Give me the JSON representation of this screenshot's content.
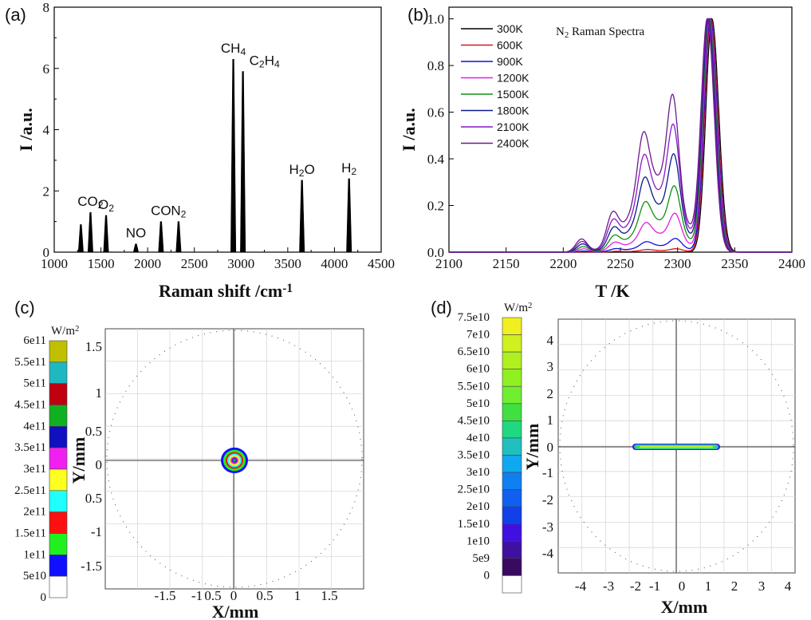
{
  "chart_data": [
    {
      "panel": "(a)",
      "type": "bar",
      "xlabel": "Raman shift  /cm",
      "xlabel_sup": "-1",
      "ylabel": "I  /a.u.",
      "xlim": [
        1000,
        4500
      ],
      "ylim": [
        0,
        8
      ],
      "xticks": [
        "1000",
        "1500",
        "2000",
        "2500",
        "3000",
        "3500",
        "4000",
        "4500"
      ],
      "yticks": [
        "0",
        "2",
        "4",
        "6",
        "8"
      ],
      "peaks": [
        {
          "x": 1285,
          "y": 0.9,
          "label": ""
        },
        {
          "x": 1388,
          "y": 1.3,
          "label": "CO",
          "sub": "2"
        },
        {
          "x": 1555,
          "y": 1.2,
          "label": "O",
          "sub": "2"
        },
        {
          "x": 1875,
          "y": 0.27,
          "label": "NO",
          "sub": ""
        },
        {
          "x": 2143,
          "y": 1.0,
          "label": "CO",
          "sub": ""
        },
        {
          "x": 2331,
          "y": 1.0,
          "label": "N",
          "sub": "2"
        },
        {
          "x": 2917,
          "y": 6.3,
          "label": "CH",
          "sub": "4"
        },
        {
          "x": 3020,
          "y": 5.9,
          "label": "C",
          "sub": "2",
          "label2": "H",
          "sub2": "4"
        },
        {
          "x": 3652,
          "y": 2.35,
          "label": "H",
          "sub": "2",
          "label2": "O",
          "sub2": ""
        },
        {
          "x": 4156,
          "y": 2.4,
          "label": "H",
          "sub": "2"
        }
      ]
    },
    {
      "panel": "(b)",
      "type": "line",
      "title": "N",
      "title_sub": "2",
      "title_rest": " Raman Spectra",
      "xlabel": "T /K",
      "ylabel": "I /a.u.",
      "xlim": [
        2100,
        2400
      ],
      "ylim": [
        0,
        1.05
      ],
      "xticks": [
        "2100",
        "2150",
        "2200",
        "2250",
        "2300",
        "2350",
        "2400"
      ],
      "yticks": [
        "0.0",
        "0.2",
        "0.4",
        "0.6",
        "0.8",
        "1.0"
      ],
      "series": [
        {
          "name": "300K",
          "color": "#000000",
          "center": 2330,
          "hot": 0.0
        },
        {
          "name": "600K",
          "color": "#e0101a",
          "center": 2329,
          "hot": 0.015
        },
        {
          "name": "900K",
          "color": "#1010d8",
          "center": 2328.5,
          "hot": 0.06
        },
        {
          "name": "1200K",
          "color": "#e020e0",
          "center": 2328,
          "hot": 0.17
        },
        {
          "name": "1500K",
          "color": "#109010",
          "center": 2327.5,
          "hot": 0.29
        },
        {
          "name": "1800K",
          "color": "#0a1a8a",
          "center": 2327,
          "hot": 0.43
        },
        {
          "name": "2100K",
          "color": "#8a18c8",
          "center": 2326.5,
          "hot": 0.56
        },
        {
          "name": "2400K",
          "color": "#6a1a8a",
          "center": 2326,
          "hot": 0.69
        }
      ]
    },
    {
      "panel": "(c)",
      "type": "heatmap",
      "xlabel": "X/mm",
      "ylabel": "Y/mm",
      "xticks": [
        "-1.5",
        "-1",
        "0.5",
        "0",
        "0.5",
        "1",
        "1.5"
      ],
      "yticks": [
        "1.5",
        "1",
        "0.5",
        "0",
        "0.5",
        "-1",
        "-1.5"
      ],
      "colorbar_unit": "W/m",
      "colorbar_unit_sup": "2",
      "colorbar_ticks": [
        "6e11",
        "5.5e11",
        "5e11",
        "4.5e11",
        "4e11",
        "3.5e11",
        "3e11",
        "2.5e11",
        "2e11",
        "1.5e11",
        "1e11",
        "5e10",
        "0"
      ],
      "colorbar_colors": [
        "#c0c000",
        "#20b8c0",
        "#c00010",
        "#10b020",
        "#1010c0",
        "#f020f0",
        "#ffff20",
        "#20ffff",
        "#ff1010",
        "#20f020",
        "#1010ff",
        "#ffffff"
      ]
    },
    {
      "panel": "(d)",
      "type": "heatmap",
      "xlabel": "X/mm",
      "ylabel": "Y/mm",
      "xticks": [
        "-4",
        "-3",
        "-2",
        "-1",
        "0",
        "1",
        "2",
        "3",
        "4"
      ],
      "yticks": [
        "4",
        "3",
        "2",
        "1",
        "0",
        "-1",
        "-2",
        "-3",
        "-4"
      ],
      "colorbar_unit": "W/m",
      "colorbar_unit_sup": "2",
      "colorbar_ticks": [
        "7.5e10",
        "7e10",
        "6.5e10",
        "6e10",
        "5.5e10",
        "5e10",
        "4.5e10",
        "4e10",
        "3.5e10",
        "3e10",
        "2.5e10",
        "2e10",
        "1.5e10",
        "1e10",
        "5e9",
        "0"
      ],
      "colorbar_colors": [
        "#f0f020",
        "#d0f020",
        "#b0f020",
        "#90f020",
        "#70ee30",
        "#40e040",
        "#20d880",
        "#20c0c0",
        "#10a8f0",
        "#1080f0",
        "#1060f0",
        "#1040e8",
        "#4010e0",
        "#4010a0",
        "#3a0a60",
        "#ffffff"
      ]
    }
  ]
}
